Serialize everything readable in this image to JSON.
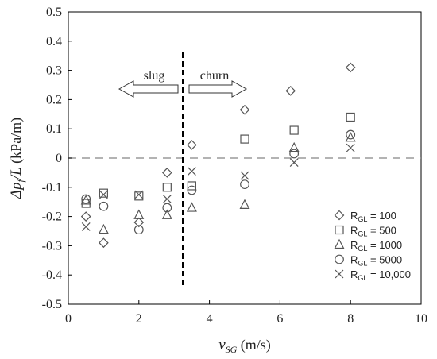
{
  "chart_data": {
    "type": "scatter",
    "title": "",
    "xlabel": {
      "var": "v",
      "sub": "SG",
      "unit": " (m/s)"
    },
    "ylabel": {
      "var": "Δp",
      "sub": "f",
      "rest": "/L",
      "unit": " (kPa/m)"
    },
    "xlim": [
      0,
      10
    ],
    "ylim": [
      -0.5,
      0.5
    ],
    "xticks": [
      "0",
      "2",
      "4",
      "6",
      "8",
      "10"
    ],
    "yticks": [
      "-0.5",
      "-0.4",
      "-0.3",
      "-0.2",
      "-0.1",
      "0",
      "0.1",
      "0.2",
      "0.3",
      "0.4",
      "0.5"
    ],
    "zero_line": {
      "y": 0,
      "style": "dashed",
      "color": "#9a9a9a"
    },
    "regime_boundary": {
      "x": 3.25,
      "style": "dashed",
      "color": "#000000"
    },
    "regimes": [
      {
        "label": "slug",
        "direction": "left"
      },
      {
        "label": "churn",
        "direction": "right"
      }
    ],
    "legend_position": "lower-right",
    "series": [
      {
        "name": "R_GL = 100",
        "label_main": "R",
        "label_sub": "GL",
        "label_rest": " = 100",
        "marker": "diamond",
        "points": [
          [
            0.5,
            -0.2
          ],
          [
            1.0,
            -0.29
          ],
          [
            2.0,
            -0.22
          ],
          [
            2.8,
            -0.05
          ],
          [
            3.5,
            0.045
          ],
          [
            5.0,
            0.165
          ],
          [
            6.3,
            0.23
          ],
          [
            8.0,
            0.31
          ]
        ]
      },
      {
        "name": "R_GL = 500",
        "label_main": "R",
        "label_sub": "GL",
        "label_rest": " = 500",
        "marker": "square",
        "points": [
          [
            0.5,
            -0.155
          ],
          [
            1.0,
            -0.12
          ],
          [
            2.0,
            -0.13
          ],
          [
            2.8,
            -0.1
          ],
          [
            3.5,
            -0.095
          ],
          [
            5.0,
            0.065
          ],
          [
            6.4,
            0.095
          ],
          [
            8.0,
            0.14
          ]
        ]
      },
      {
        "name": "R_GL = 1000",
        "label_main": "R",
        "label_sub": "GL",
        "label_rest": " = 1000",
        "marker": "triangle",
        "points": [
          [
            0.5,
            -0.145
          ],
          [
            1.0,
            -0.245
          ],
          [
            2.0,
            -0.195
          ],
          [
            2.8,
            -0.195
          ],
          [
            3.5,
            -0.17
          ],
          [
            5.0,
            -0.16
          ],
          [
            6.4,
            0.035
          ],
          [
            8.0,
            0.07
          ]
        ]
      },
      {
        "name": "R_GL = 5000",
        "label_main": "R",
        "label_sub": "GL",
        "label_rest": " = 5000",
        "marker": "circle",
        "points": [
          [
            0.5,
            -0.14
          ],
          [
            1.0,
            -0.165
          ],
          [
            2.0,
            -0.245
          ],
          [
            2.8,
            -0.17
          ],
          [
            3.5,
            -0.11
          ],
          [
            5.0,
            -0.09
          ],
          [
            6.4,
            0.015
          ],
          [
            8.0,
            0.08
          ]
        ]
      },
      {
        "name": "R_GL = 10,000",
        "label_main": "R",
        "label_sub": "GL",
        "label_rest": " = 10,000",
        "marker": "x",
        "points": [
          [
            0.5,
            -0.235
          ],
          [
            1.0,
            -0.125
          ],
          [
            2.0,
            -0.125
          ],
          [
            2.8,
            -0.14
          ],
          [
            3.5,
            -0.045
          ],
          [
            5.0,
            -0.06
          ],
          [
            6.4,
            -0.015
          ],
          [
            8.0,
            0.035
          ]
        ]
      }
    ]
  }
}
